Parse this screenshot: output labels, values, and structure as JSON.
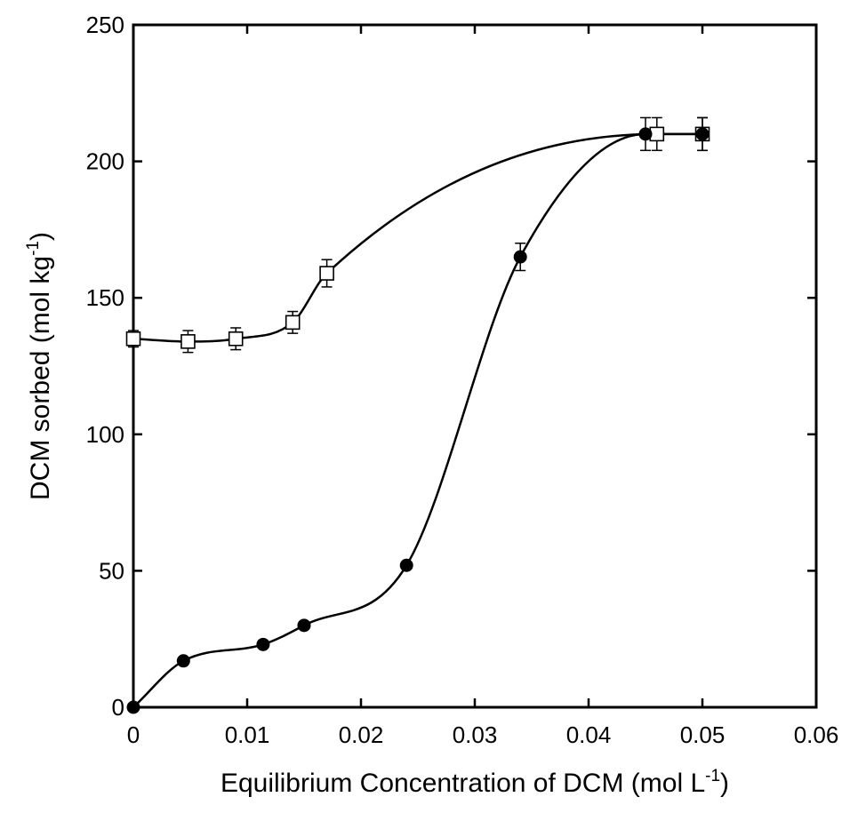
{
  "chart_data": {
    "type": "scatter",
    "xlabel": "Equilibrium Concentration of DCM (mol L",
    "xlabel_sup": "-1",
    "xlabel_end": ")",
    "ylabel": "DCM sorbed (mol kg",
    "ylabel_sup": "-1",
    "ylabel_end": ")",
    "xlim": [
      0,
      0.06
    ],
    "ylim": [
      0,
      250
    ],
    "xticks": [
      0,
      0.01,
      0.02,
      0.03,
      0.04,
      0.05,
      0.06
    ],
    "xtick_labels": [
      "0",
      "0.01",
      "0.02",
      "0.03",
      "0.04",
      "0.05",
      "0.06"
    ],
    "yticks": [
      0,
      50,
      100,
      150,
      200,
      250
    ],
    "ytick_labels": [
      "0",
      "50",
      "100",
      "150",
      "200",
      "250"
    ],
    "grid": false,
    "series": [
      {
        "marker": "open-square",
        "color": "#000000",
        "x": [
          0,
          0.0048,
          0.009,
          0.014,
          0.017,
          0.046,
          0.05
        ],
        "y": [
          135,
          134,
          135,
          141,
          159,
          210,
          210
        ],
        "error": [
          3,
          4,
          4,
          4,
          5,
          6,
          6
        ]
      },
      {
        "marker": "filled-circle",
        "color": "#000000",
        "x": [
          0,
          0.0044,
          0.0114,
          0.015,
          0.024,
          0.034,
          0.045,
          0.05
        ],
        "y": [
          0,
          17,
          23,
          30,
          52,
          165,
          210,
          210
        ],
        "error": [
          0,
          0,
          0,
          0,
          0,
          5,
          6,
          6
        ]
      }
    ]
  }
}
